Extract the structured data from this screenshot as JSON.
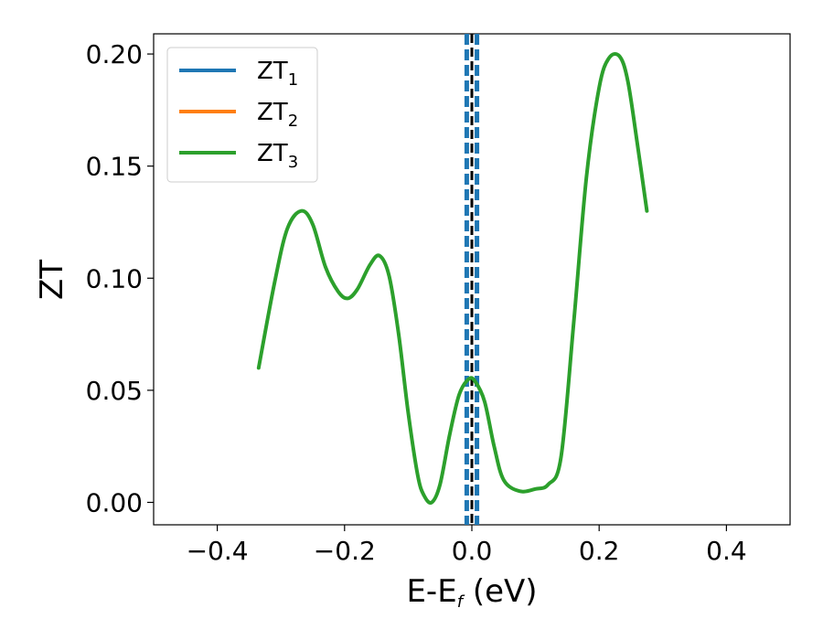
{
  "chart_data": {
    "type": "line",
    "xlabel": "E-E",
    "xlabel_sub": "f",
    "xlabel_unit": " (eV)",
    "ylabel": "ZT",
    "xlim": [
      -0.5,
      0.5
    ],
    "ylim": [
      -0.01,
      0.209
    ],
    "xticks": [
      -0.4,
      -0.2,
      0.0,
      0.2,
      0.4
    ],
    "xtick_labels": [
      "−0.4",
      "−0.2",
      "0.0",
      "0.2",
      "0.4"
    ],
    "yticks": [
      0.0,
      0.05,
      0.1,
      0.15,
      0.2
    ],
    "ytick_labels": [
      "0.00",
      "0.05",
      "0.10",
      "0.15",
      "0.20"
    ],
    "grid": false,
    "legend_position": "top-left",
    "series": [
      {
        "name": "ZT",
        "name_sub": "1",
        "color": "#1f77b4",
        "x": [],
        "y": []
      },
      {
        "name": "ZT",
        "name_sub": "2",
        "color": "#ff7f0e",
        "x": [],
        "y": []
      },
      {
        "name": "ZT",
        "name_sub": "3",
        "color": "#2ca02c",
        "x": [
          -0.335,
          -0.31,
          -0.29,
          -0.268,
          -0.25,
          -0.23,
          -0.21,
          -0.195,
          -0.18,
          -0.16,
          -0.145,
          -0.13,
          -0.115,
          -0.1,
          -0.085,
          -0.075,
          -0.063,
          -0.05,
          -0.035,
          -0.02,
          -0.005,
          0.005,
          0.02,
          0.035,
          0.05,
          0.075,
          0.1,
          0.12,
          0.14,
          0.16,
          0.18,
          0.2,
          0.215,
          0.232,
          0.245,
          0.26,
          0.275
        ],
        "y": [
          0.06,
          0.098,
          0.122,
          0.13,
          0.124,
          0.105,
          0.094,
          0.091,
          0.095,
          0.106,
          0.11,
          0.101,
          0.075,
          0.04,
          0.012,
          0.003,
          0.0,
          0.008,
          0.03,
          0.048,
          0.055,
          0.054,
          0.045,
          0.025,
          0.01,
          0.005,
          0.006,
          0.008,
          0.02,
          0.08,
          0.145,
          0.185,
          0.198,
          0.199,
          0.188,
          0.16,
          0.13
        ]
      }
    ],
    "reference_lines": [
      {
        "x": 0.0,
        "color": "#000000",
        "style": "dashed"
      },
      {
        "x": -0.008,
        "color": "#1f77b4",
        "style": "dashed"
      },
      {
        "x": 0.008,
        "color": "#1f77b4",
        "style": "dashed"
      }
    ]
  }
}
